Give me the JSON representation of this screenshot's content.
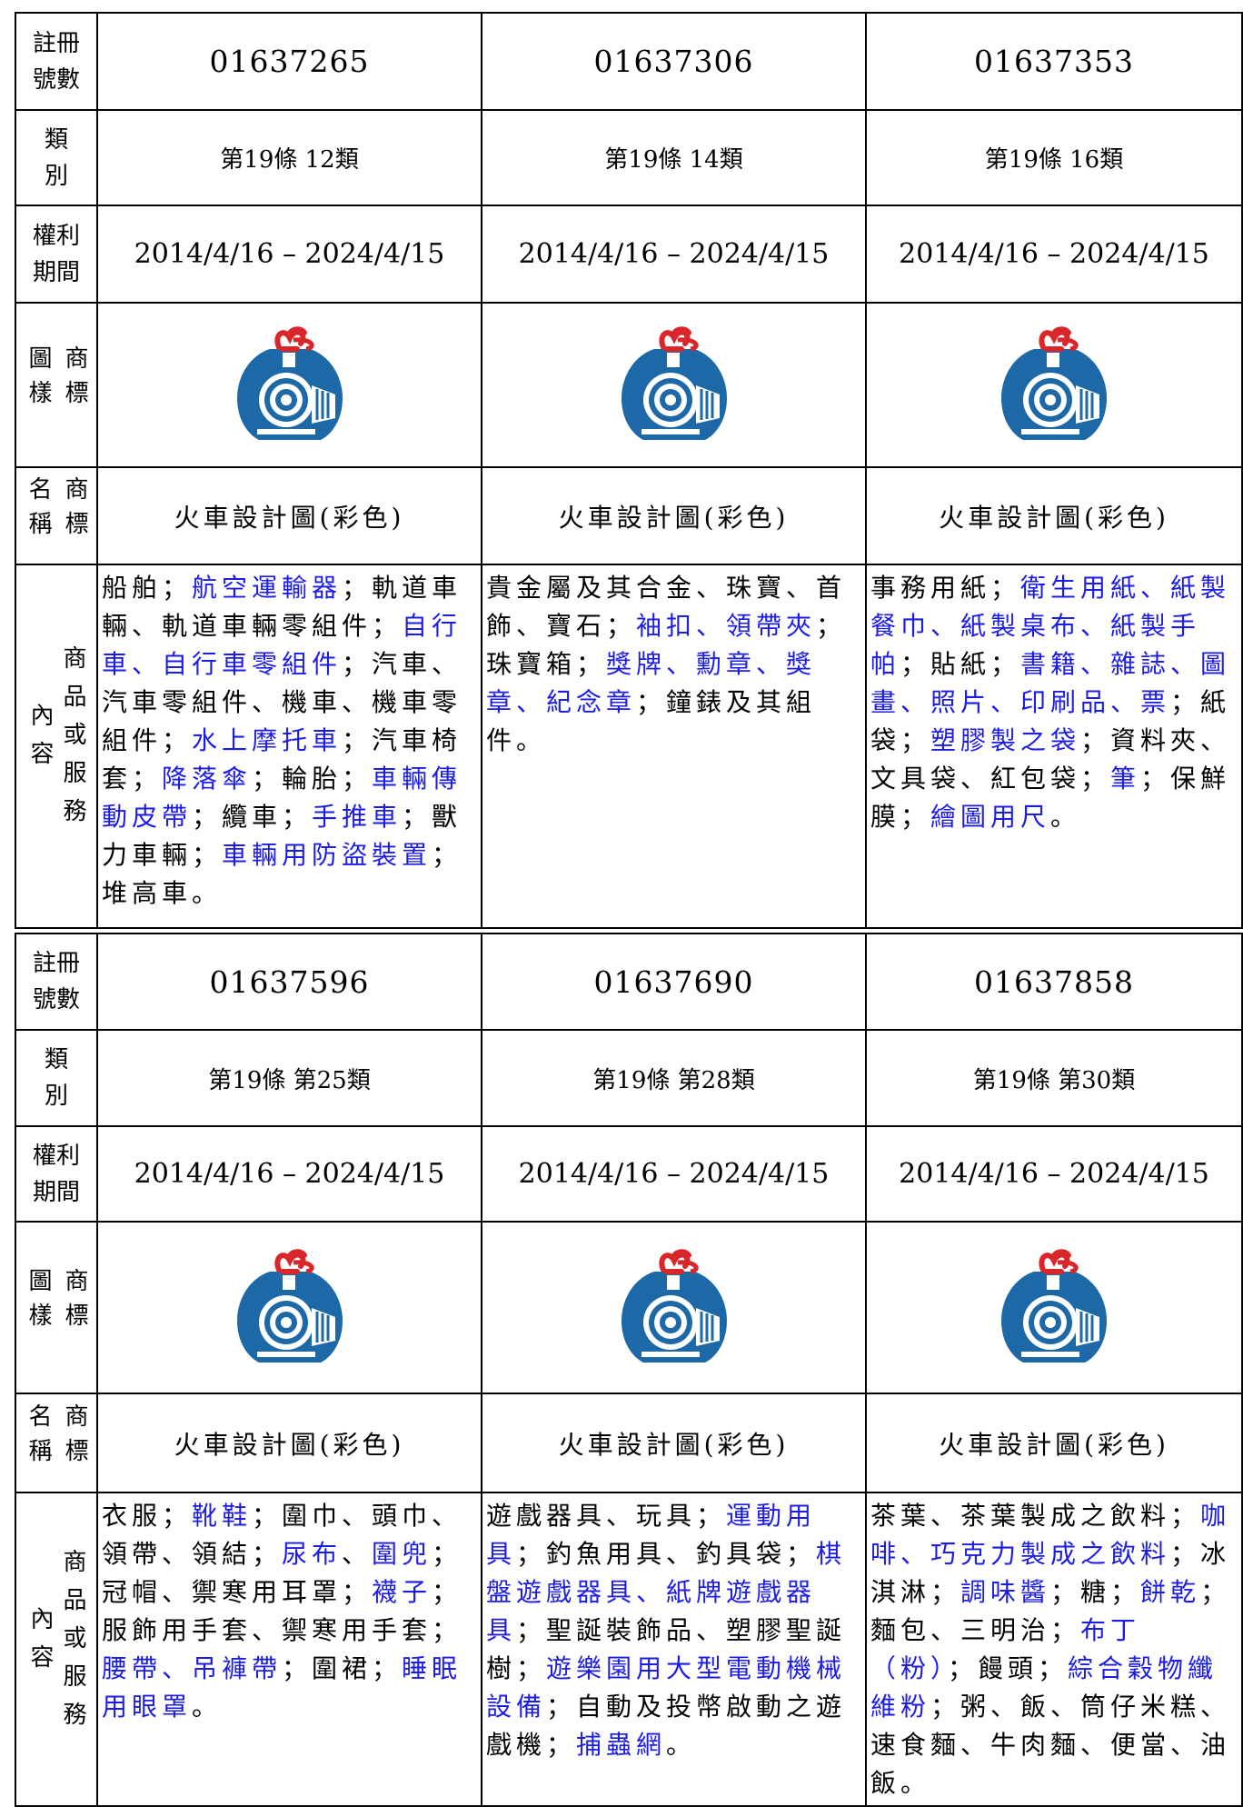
{
  "labels": [
    "註冊號數",
    "類別",
    "權利期間",
    "商標圖樣",
    "商標名稱",
    "商品或服務內容"
  ],
  "blocks": [
    {
      "records": [
        {
          "registration_number": "01637265",
          "class": "第19條 12類",
          "term": "2014/4/16 – 2024/4/15",
          "trademark_name": "火車設計圖(彩色)",
          "goods": [
            {
              "text": "船舶；",
              "blue": false
            },
            {
              "text": "航空運輸器",
              "blue": true
            },
            {
              "text": "；軌道車輛、軌道車輛零組件；",
              "blue": false
            },
            {
              "text": "自行車、自行車零組件",
              "blue": true
            },
            {
              "text": "；汽車、汽車零組件、機車、機車零組件；",
              "blue": false
            },
            {
              "text": "水上摩托車",
              "blue": true
            },
            {
              "text": "；汽車椅套；",
              "blue": false
            },
            {
              "text": "降落傘",
              "blue": true
            },
            {
              "text": "；輪胎；",
              "blue": false
            },
            {
              "text": "車輛傳動皮帶",
              "blue": true
            },
            {
              "text": "；纜車；",
              "blue": false
            },
            {
              "text": "手推車",
              "blue": true
            },
            {
              "text": "；獸力車輛；",
              "blue": false
            },
            {
              "text": "車輛用防盜裝置",
              "blue": true
            },
            {
              "text": "；堆高車。",
              "blue": false
            }
          ]
        },
        {
          "registration_number": "01637306",
          "class": "第19條 14類",
          "term": "2014/4/16 – 2024/4/15",
          "trademark_name": "火車設計圖(彩色)",
          "goods": [
            {
              "text": "貴金屬及其合金、珠寶、首飾、寶石；",
              "blue": false
            },
            {
              "text": "袖扣、領帶夾",
              "blue": true
            },
            {
              "text": "；珠寶箱；",
              "blue": false
            },
            {
              "text": "獎牌、勳章、獎章、紀念章",
              "blue": true
            },
            {
              "text": "；鐘錶及其組件。",
              "blue": false
            }
          ]
        },
        {
          "registration_number": "01637353",
          "class": "第19條 16類",
          "term": "2014/4/16 – 2024/4/15",
          "trademark_name": "火車設計圖(彩色)",
          "goods": [
            {
              "text": "事務用紙；",
              "blue": false
            },
            {
              "text": "衛生用紙、紙製餐巾、紙製桌布、紙製手帕",
              "blue": true
            },
            {
              "text": "；貼紙；",
              "blue": false
            },
            {
              "text": "書籍、雜誌、圖畫、照片、印刷品、票",
              "blue": true
            },
            {
              "text": "；紙袋；",
              "blue": false
            },
            {
              "text": "塑膠製之袋",
              "blue": true
            },
            {
              "text": "；資料夾、文具袋、紅包袋；",
              "blue": false
            },
            {
              "text": "筆",
              "blue": true
            },
            {
              "text": "；保鮮膜；",
              "blue": false
            },
            {
              "text": "繪圖用尺",
              "blue": true
            },
            {
              "text": "。",
              "blue": false
            }
          ]
        }
      ]
    },
    {
      "records": [
        {
          "registration_number": "01637596",
          "class": "第19條 第25類",
          "term": "2014/4/16 – 2024/4/15",
          "trademark_name": "火車設計圖(彩色)",
          "goods": [
            {
              "text": "衣服；",
              "blue": false
            },
            {
              "text": "靴鞋",
              "blue": true
            },
            {
              "text": "；圍巾、頭巾、領帶、領結；",
              "blue": false
            },
            {
              "text": "尿布",
              "blue": true
            },
            {
              "text": "、",
              "blue": false
            },
            {
              "text": "圍兜",
              "blue": true
            },
            {
              "text": "；冠帽、禦寒用耳罩；",
              "blue": false
            },
            {
              "text": "襪子",
              "blue": true
            },
            {
              "text": "；服飾用手套、禦寒用手套；",
              "blue": false
            },
            {
              "text": "腰帶、吊褲帶",
              "blue": true
            },
            {
              "text": "；圍裙；",
              "blue": false
            },
            {
              "text": "睡眠用眼罩",
              "blue": true
            },
            {
              "text": "。",
              "blue": false
            }
          ]
        },
        {
          "registration_number": "01637690",
          "class": "第19條 第28類",
          "term": "2014/4/16 – 2024/4/15",
          "trademark_name": "火車設計圖(彩色)",
          "goods": [
            {
              "text": "遊戲器具、玩具；",
              "blue": false
            },
            {
              "text": "運動用具",
              "blue": true
            },
            {
              "text": "；釣魚用具、釣具袋；",
              "blue": false
            },
            {
              "text": "棋盤遊戲器具、紙牌遊戲器具",
              "blue": true
            },
            {
              "text": "；聖誕裝飾品、塑膠聖誕樹；",
              "blue": false
            },
            {
              "text": "遊樂園用大型電動機械設備",
              "blue": true
            },
            {
              "text": "；自動及投幣啟動之遊戲機；",
              "blue": false
            },
            {
              "text": "捕蟲網",
              "blue": true
            },
            {
              "text": "。",
              "blue": false
            }
          ]
        },
        {
          "registration_number": "01637858",
          "class": "第19條 第30類",
          "term": "2014/4/16 – 2024/4/15",
          "trademark_name": "火車設計圖(彩色)",
          "goods": [
            {
              "text": "茶葉、茶葉製成之飲料；",
              "blue": false
            },
            {
              "text": "咖啡、巧克力製成之飲料",
              "blue": true
            },
            {
              "text": "；冰淇淋；",
              "blue": false
            },
            {
              "text": "調味醬",
              "blue": true
            },
            {
              "text": "；糖；",
              "blue": false
            },
            {
              "text": "餅乾",
              "blue": true
            },
            {
              "text": "；麵包、三明治；",
              "blue": false
            },
            {
              "text": "布丁（粉）",
              "blue": true
            },
            {
              "text": "；饅頭；",
              "blue": false
            },
            {
              "text": "綜合穀物纖維粉",
              "blue": true
            },
            {
              "text": "；粥、飯、筒仔米糕、速食麵、牛肉麵、便當、油飯。",
              "blue": false
            }
          ]
        }
      ]
    }
  ]
}
